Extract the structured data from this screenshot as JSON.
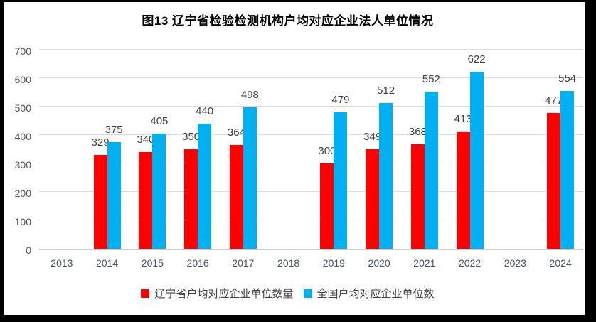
{
  "chart_data": {
    "type": "bar",
    "title": "图13 辽宁省检验检测机构户均对应企业法人单位情况",
    "categories": [
      "2013",
      "2014",
      "2015",
      "2016",
      "2017",
      "2018",
      "2019",
      "2020",
      "2021",
      "2022",
      "2023",
      "2024"
    ],
    "series": [
      {
        "name": "辽宁省户均对应企业单位数量",
        "color": "#FF0000",
        "values": [
          null,
          329,
          340,
          350,
          364,
          null,
          300,
          349,
          368,
          413,
          null,
          477
        ]
      },
      {
        "name": "全国户均对应企业单位数",
        "color": "#00B0F0",
        "values": [
          null,
          375,
          405,
          440,
          498,
          null,
          479,
          512,
          552,
          622,
          null,
          554
        ]
      }
    ],
    "xlabel": "",
    "ylabel": "",
    "ylim": [
      0,
      700
    ],
    "yticks": [
      0,
      100,
      200,
      300,
      400,
      500,
      600,
      700
    ],
    "grid": true,
    "legend_position": "bottom",
    "styles": {
      "grid_color": "#D9D9D9",
      "axis_color": "#CCCCCC",
      "ytick_color": "#595959",
      "xtick_color": "#44546A",
      "value_label_color": "#404040",
      "title_color": "#000000",
      "frame_color": "#000000",
      "background": "#FFFFFF"
    }
  }
}
